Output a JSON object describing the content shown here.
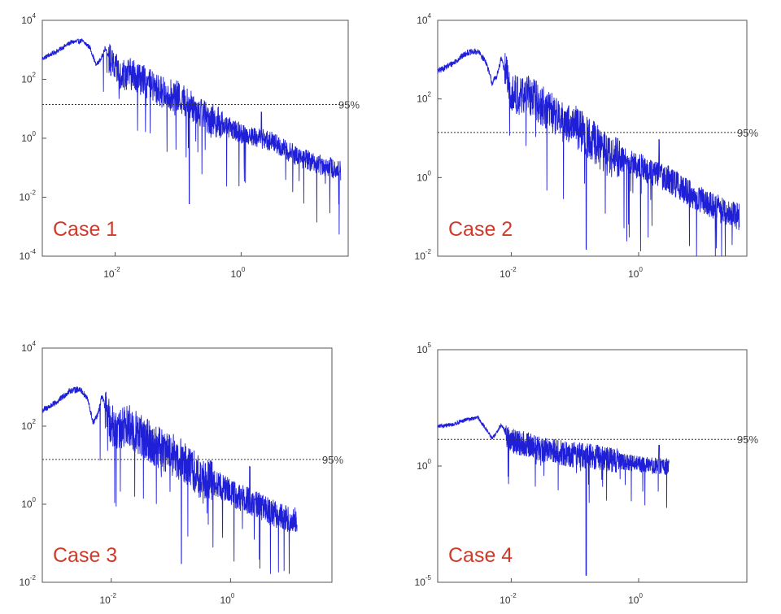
{
  "chart_data": [
    {
      "type": "line",
      "title": "",
      "xlabel": "",
      "ylabel": "",
      "x_scale": "log",
      "y_scale": "log",
      "xlim": [
        0.0007,
        50
      ],
      "ylim": [
        0.0001,
        10000
      ],
      "x_tick_labels": [
        {
          "value": 0.01,
          "base": "10",
          "exp": "-2"
        },
        {
          "value": 1,
          "base": "10",
          "exp": "0"
        }
      ],
      "y_tick_labels": [
        {
          "value": 10000,
          "base": "10",
          "exp": "4"
        },
        {
          "value": 100,
          "base": "10",
          "exp": "2"
        },
        {
          "value": 1,
          "base": "10",
          "exp": "0"
        },
        {
          "value": 0.01,
          "base": "10",
          "exp": "-2"
        },
        {
          "value": 0.0001,
          "base": "10",
          "exp": "-4"
        }
      ],
      "threshold": {
        "value": 14,
        "label": "95%"
      },
      "annotation": "Case 1",
      "series": [
        {
          "color": "#1f1fd8",
          "x_max": 38,
          "y_min_dip": 0.006,
          "envelope": [
            [
              0.0007,
              500
            ],
            [
              0.0012,
              900
            ],
            [
              0.002,
              1800
            ],
            [
              0.003,
              2000
            ],
            [
              0.004,
              1200
            ],
            [
              0.005,
              300
            ],
            [
              0.006,
              500
            ],
            [
              0.007,
              1200
            ],
            [
              0.009,
              300
            ],
            [
              0.012,
              150
            ],
            [
              0.02,
              150
            ],
            [
              0.03,
              80
            ],
            [
              0.05,
              40
            ],
            [
              0.1,
              25
            ],
            [
              0.2,
              10
            ],
            [
              0.3,
              5
            ],
            [
              0.5,
              3
            ],
            [
              1,
              1.5
            ],
            [
              2,
              1
            ],
            [
              3,
              0.8
            ],
            [
              5,
              0.4
            ],
            [
              10,
              0.2
            ],
            [
              20,
              0.12
            ],
            [
              38,
              0.08
            ]
          ]
        }
      ],
      "grid": false,
      "legend": "none"
    },
    {
      "type": "line",
      "title": "",
      "xlabel": "",
      "ylabel": "",
      "x_scale": "log",
      "y_scale": "log",
      "xlim": [
        0.0007,
        50
      ],
      "ylim": [
        0.01,
        10000
      ],
      "x_tick_labels": [
        {
          "value": 0.01,
          "base": "10",
          "exp": "-2"
        },
        {
          "value": 1,
          "base": "10",
          "exp": "0"
        }
      ],
      "y_tick_labels": [
        {
          "value": 10000,
          "base": "10",
          "exp": "4"
        },
        {
          "value": 100,
          "base": "10",
          "exp": "2"
        },
        {
          "value": 1,
          "base": "10",
          "exp": "0"
        },
        {
          "value": 0.01,
          "base": "10",
          "exp": "-2"
        }
      ],
      "threshold": {
        "value": 14,
        "label": "95%"
      },
      "annotation": "Case 2",
      "series": [
        {
          "color": "#1f1fd8",
          "x_max": 38,
          "y_min_dip": 0.015,
          "envelope": [
            [
              0.0007,
              500
            ],
            [
              0.0012,
              800
            ],
            [
              0.002,
              1500
            ],
            [
              0.003,
              1600
            ],
            [
              0.004,
              900
            ],
            [
              0.005,
              250
            ],
            [
              0.006,
              400
            ],
            [
              0.007,
              1100
            ],
            [
              0.009,
              250
            ],
            [
              0.012,
              120
            ],
            [
              0.02,
              120
            ],
            [
              0.03,
              70
            ],
            [
              0.05,
              35
            ],
            [
              0.1,
              20
            ],
            [
              0.2,
              8
            ],
            [
              0.3,
              4
            ],
            [
              0.5,
              3
            ],
            [
              1,
              2
            ],
            [
              2,
              1.2
            ],
            [
              3,
              0.9
            ],
            [
              5,
              0.5
            ],
            [
              10,
              0.25
            ],
            [
              20,
              0.15
            ],
            [
              38,
              0.1
            ]
          ]
        }
      ],
      "grid": false,
      "legend": "none"
    },
    {
      "type": "line",
      "title": "",
      "xlabel": "",
      "ylabel": "",
      "x_scale": "log",
      "y_scale": "log",
      "xlim": [
        0.0007,
        50
      ],
      "ylim": [
        0.01,
        10000
      ],
      "x_tick_labels": [
        {
          "value": 0.01,
          "base": "10",
          "exp": "-2"
        },
        {
          "value": 1,
          "base": "10",
          "exp": "0"
        }
      ],
      "y_tick_labels": [
        {
          "value": 10000,
          "base": "10",
          "exp": "4"
        },
        {
          "value": 100,
          "base": "10",
          "exp": "2"
        },
        {
          "value": 1,
          "base": "10",
          "exp": "0"
        },
        {
          "value": 0.01,
          "base": "10",
          "exp": "-2"
        }
      ],
      "threshold": {
        "value": 14,
        "label": "95%"
      },
      "annotation": "Case 3",
      "series": [
        {
          "color": "#1f1fd8",
          "x_max": 13,
          "y_min_dip": 0.03,
          "envelope": [
            [
              0.0007,
              250
            ],
            [
              0.0012,
              400
            ],
            [
              0.002,
              800
            ],
            [
              0.003,
              900
            ],
            [
              0.004,
              500
            ],
            [
              0.005,
              120
            ],
            [
              0.006,
              200
            ],
            [
              0.007,
              600
            ],
            [
              0.009,
              150
            ],
            [
              0.012,
              80
            ],
            [
              0.02,
              100
            ],
            [
              0.03,
              60
            ],
            [
              0.05,
              35
            ],
            [
              0.1,
              20
            ],
            [
              0.2,
              10
            ],
            [
              0.3,
              5
            ],
            [
              0.5,
              4
            ],
            [
              1,
              2
            ],
            [
              2,
              1.2
            ],
            [
              3,
              0.9
            ],
            [
              5,
              0.6
            ],
            [
              10,
              0.4
            ],
            [
              13,
              0.4
            ]
          ]
        }
      ],
      "grid": false,
      "legend": "none"
    },
    {
      "type": "line",
      "title": "",
      "xlabel": "",
      "ylabel": "",
      "x_scale": "log",
      "y_scale": "log",
      "xlim": [
        0.0007,
        50
      ],
      "ylim": [
        1e-05,
        100000
      ],
      "x_tick_labels": [
        {
          "value": 0.01,
          "base": "10",
          "exp": "-2"
        },
        {
          "value": 1,
          "base": "10",
          "exp": "0"
        }
      ],
      "y_tick_labels": [
        {
          "value": 100000,
          "base": "10",
          "exp": "5"
        },
        {
          "value": 1,
          "base": "10",
          "exp": "0"
        },
        {
          "value": 1e-05,
          "base": "10",
          "exp": "-5"
        }
      ],
      "threshold": {
        "value": 14,
        "label": "95%"
      },
      "annotation": "Case 4",
      "series": [
        {
          "color": "#1f1fd8",
          "x_max": 3,
          "y_min_dip": 2e-05,
          "envelope": [
            [
              0.0007,
              50
            ],
            [
              0.0012,
              60
            ],
            [
              0.002,
              100
            ],
            [
              0.003,
              120
            ],
            [
              0.004,
              40
            ],
            [
              0.005,
              15
            ],
            [
              0.006,
              30
            ],
            [
              0.007,
              60
            ],
            [
              0.009,
              15
            ],
            [
              0.012,
              10
            ],
            [
              0.02,
              8
            ],
            [
              0.03,
              5
            ],
            [
              0.05,
              4
            ],
            [
              0.1,
              3
            ],
            [
              0.2,
              2.5
            ],
            [
              0.3,
              2
            ],
            [
              0.5,
              1.6
            ],
            [
              1,
              1.2
            ],
            [
              2,
              1
            ],
            [
              3,
              0.9
            ]
          ]
        }
      ],
      "grid": false,
      "legend": "none"
    }
  ],
  "colors": {
    "line": "#1f1fd8",
    "case_label": "#d03a2a",
    "threshold": "#333333",
    "axis": "#555555"
  }
}
